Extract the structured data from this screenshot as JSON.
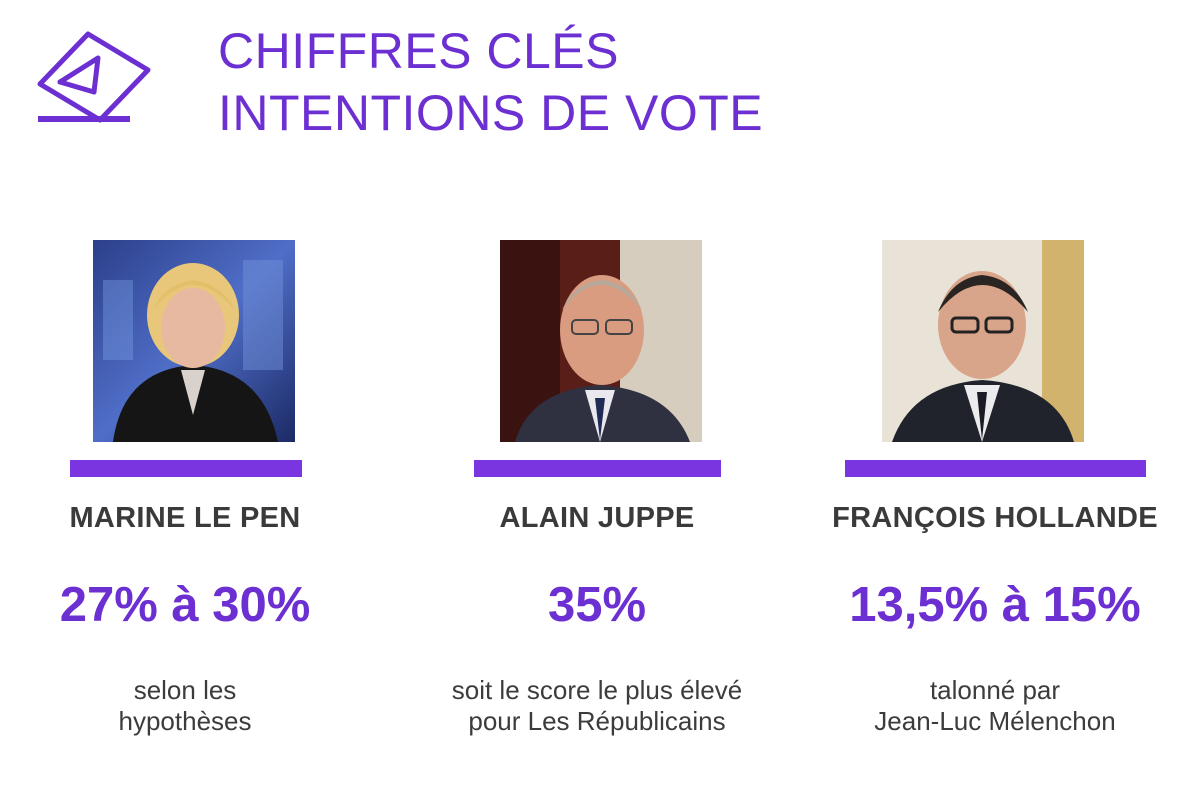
{
  "header": {
    "title_line1": "CHIFFRES CLÉS",
    "title_line2": "INTENTIONS DE VOTE",
    "logo_icon": "ballot-box-icon",
    "accent_color": "#6c2fd1"
  },
  "candidates": [
    {
      "name": "MARINE LE PEN",
      "score": "27% à 30%",
      "note_line1": "selon les",
      "note_line2": "hypothèses",
      "photo": "portrait-marine-le-pen"
    },
    {
      "name": "ALAIN JUPPE",
      "score": "35%",
      "note_line1": "soit le score le plus élevé",
      "note_line2": "pour Les Républicains",
      "photo": "portrait-alain-juppe"
    },
    {
      "name": "FRANÇOIS HOLLANDE",
      "score": "13,5% à 15%",
      "note_line1": "talonné par",
      "note_line2": "Jean-Luc Mélenchon",
      "photo": "portrait-francois-hollande"
    }
  ]
}
